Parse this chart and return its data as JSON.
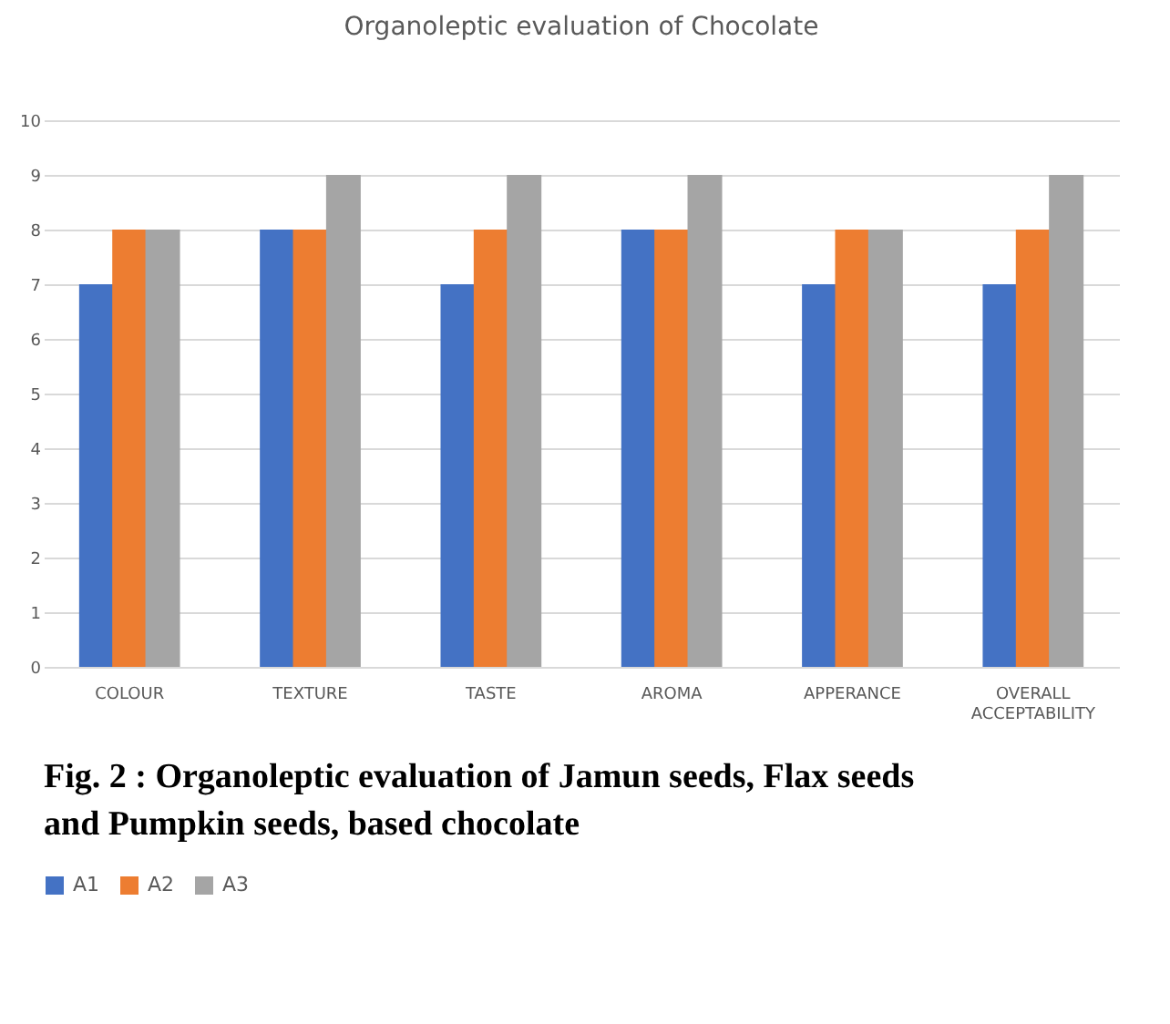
{
  "chart_data": {
    "type": "bar",
    "title": "Organoleptic evaluation of Chocolate",
    "categories": [
      "COLOUR",
      "TEXTURE",
      "TASTE",
      "AROMA",
      "APPERANCE",
      "OVERALL ACCEPTABILITY"
    ],
    "series": [
      {
        "name": "A1",
        "color": "#4472c4",
        "values": [
          7,
          8,
          7,
          8,
          7,
          7
        ]
      },
      {
        "name": "A2",
        "color": "#ed7d31",
        "values": [
          8,
          8,
          8,
          8,
          8,
          8
        ]
      },
      {
        "name": "A3",
        "color": "#a5a5a5",
        "values": [
          8,
          9,
          9,
          9,
          8,
          9
        ]
      }
    ],
    "ylim": [
      0,
      10
    ],
    "yticks": [
      0,
      1,
      2,
      3,
      4,
      5,
      6,
      7,
      8,
      9,
      10
    ],
    "grid": "y",
    "legend": "bottom",
    "annotations": [
      "Fig. 2 :   Organoleptic evaluation of Jamun seeds, Flax seeds and Pumpkin seeds, based chocolate"
    ]
  }
}
